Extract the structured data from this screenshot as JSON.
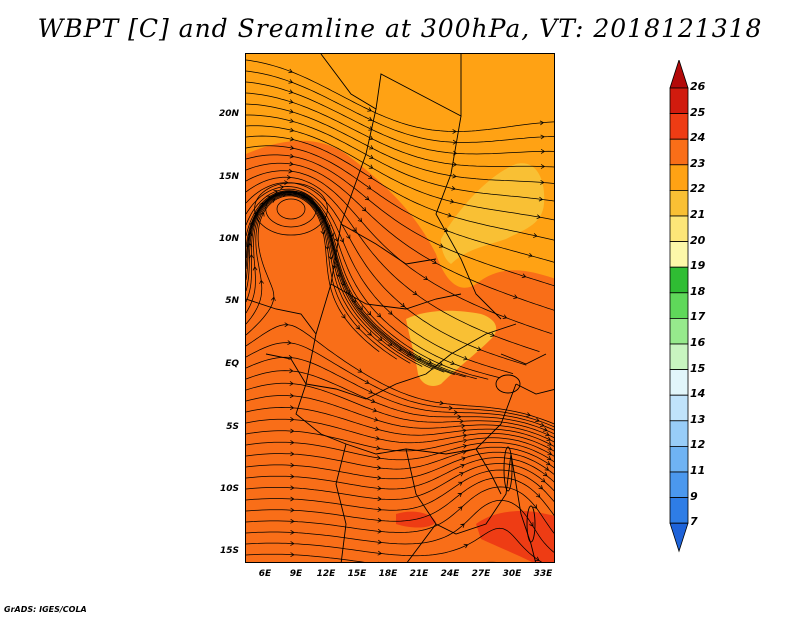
{
  "title": "WBPT [C] and Sreamline at 300hPa, VT: 2018121318",
  "credit": "GrADS: IGES/COLA",
  "map": {
    "lon_labels": [
      "6E",
      "9E",
      "12E",
      "15E",
      "18E",
      "21E",
      "24E",
      "27E",
      "30E",
      "33E"
    ],
    "lat_labels": [
      "20N",
      "15N",
      "10N",
      "5N",
      "EQ",
      "5S",
      "10S",
      "15S"
    ],
    "fill_colors": {
      "c21_22": "#ffa214",
      "c22_23": "#f96e18",
      "c20_21": "#f9c034",
      "c23_24": "#ee3c14"
    }
  },
  "colorbar": {
    "labels": [
      "7",
      "9",
      "11",
      "12",
      "13",
      "14",
      "15",
      "16",
      "17",
      "18",
      "19",
      "20",
      "21",
      "22",
      "23",
      "24",
      "25",
      "26"
    ],
    "colors": [
      "#1e63d9",
      "#2e7de6",
      "#4b98ee",
      "#6fb3f3",
      "#98cdf8",
      "#c0e3fb",
      "#e2f6fb",
      "#c8f5c0",
      "#96ea8c",
      "#5fd85a",
      "#2fbd33",
      "#fdf8a9",
      "#fde678",
      "#f9c034",
      "#ffa214",
      "#f96e18",
      "#ee3c14",
      "#d11b0e",
      "#b30a0a"
    ]
  }
}
